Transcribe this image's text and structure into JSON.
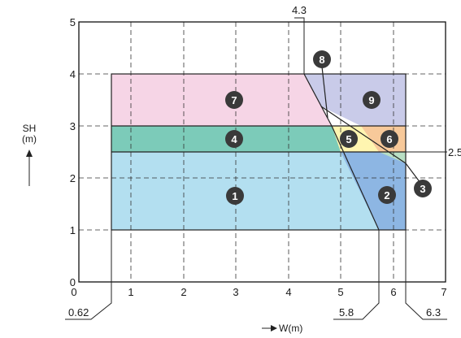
{
  "axes": {
    "x_label": "W(m)",
    "y_label": "SH",
    "y_unit": "(m)",
    "x_ticks": [
      "0",
      "1",
      "2",
      "3",
      "4",
      "5",
      "6",
      "7"
    ],
    "y_ticks": [
      "0",
      "1",
      "2",
      "3",
      "4",
      "5"
    ],
    "x_range": [
      0,
      7
    ],
    "y_range": [
      0,
      5
    ]
  },
  "callouts": {
    "top": "4.3",
    "right": "2.5",
    "left_bottom": "0.62",
    "mid_bottom": "5.8",
    "right_bottom": "6.3"
  },
  "zones": [
    {
      "id": "1",
      "color": "#b3dff0"
    },
    {
      "id": "2",
      "color": "#8db6e3"
    },
    {
      "id": "3",
      "color": "#b8dfc4"
    },
    {
      "id": "4",
      "color": "#7ccbb9"
    },
    {
      "id": "5",
      "color": "#fff5b0"
    },
    {
      "id": "6",
      "color": "#f7c99a"
    },
    {
      "id": "7",
      "color": "#f6d5e6"
    },
    {
      "id": "8",
      "color": "#bfc4e4"
    },
    {
      "id": "9",
      "color": "#c9cbe9"
    }
  ],
  "marker_color": "#3a3a3a"
}
